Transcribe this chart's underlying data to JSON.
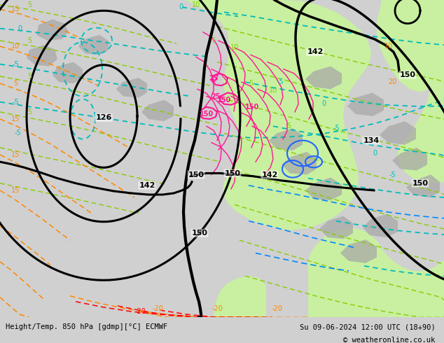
{
  "title_left": "Height/Temp. 850 hPa [gdmp][°C] ECMWF",
  "title_right": "Su 09-06-2024 12:00 UTC (18+90)",
  "copyright": "© weatheronline.co.uk",
  "bg_color": "#d0d0d0",
  "map_bg_color": "#d0d0d0",
  "fig_width": 6.34,
  "fig_height": 4.9,
  "dpi": 100,
  "bottom_bar_color": "#d8d8d8",
  "light_green": "#c8f0a0",
  "contour_black": "#000000",
  "contour_cyan": "#00bbbb",
  "contour_green": "#88cc00",
  "contour_orange": "#ff8800",
  "contour_red": "#ff0000",
  "contour_pink": "#ff1493",
  "contour_blue": "#4488ff",
  "contour_gray": "#888888",
  "font_size_labels": 7,
  "font_size_bottom": 7.5,
  "font_size_copyright": 7.5
}
